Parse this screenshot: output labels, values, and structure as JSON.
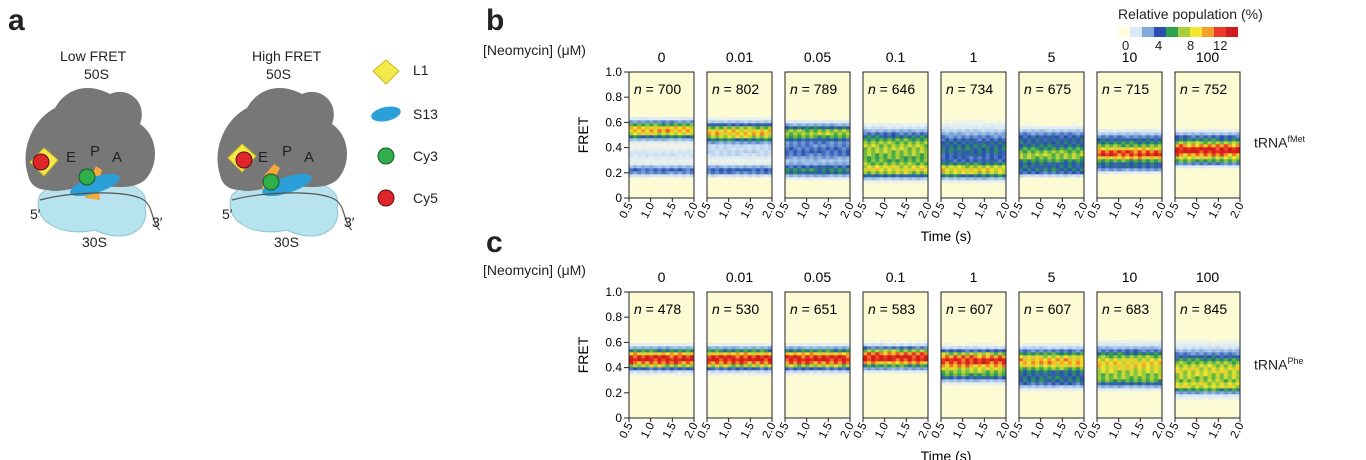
{
  "panel_a": {
    "letter": "a",
    "low_fret_title": "Low FRET",
    "high_fret_title": "High FRET",
    "subunit_large": "50S",
    "subunit_small": "30S",
    "sites": [
      "E",
      "P",
      "A"
    ],
    "five_prime": "5′",
    "three_prime": "3′",
    "legend": [
      {
        "label": "L1",
        "shape": "diamond",
        "color": "#f5e94a"
      },
      {
        "label": "S13",
        "shape": "ellipse",
        "color": "#2a9fd8"
      },
      {
        "label": "Cy3",
        "shape": "circle",
        "color": "#2fae49"
      },
      {
        "label": "Cy5",
        "shape": "circle",
        "color": "#e0262b"
      }
    ],
    "colors": {
      "ribosome_50s": "#777777",
      "ribosome_30s": "#b7e3ee",
      "trna": "#f6a83b"
    }
  },
  "panel_b": {
    "letter": "b",
    "trna_base": "tRNA",
    "trna_sup": "fMet"
  },
  "panel_c": {
    "letter": "c",
    "trna_base": "tRNA",
    "trna_sup": "Phe"
  },
  "shared": {
    "conc_label": "[Neomycin] (μM)",
    "xlabel": "Time (s)",
    "ylabel": "FRET",
    "xticks": [
      "0.5",
      "1.0",
      "1.5",
      "2.0"
    ],
    "yticks": [
      "1.0",
      "0.8",
      "0.6",
      "0.4",
      "0.2",
      "0"
    ]
  },
  "colorbar": {
    "title": "Relative population (%)",
    "ticks": [
      "0",
      "4",
      "8",
      "12"
    ],
    "colors": [
      "#fffce0",
      "#d8e8f5",
      "#7fa8dc",
      "#2a4fb0",
      "#2fa14f",
      "#a6cf3a",
      "#f4e42c",
      "#f4a12a",
      "#ec3a24",
      "#d01c1c"
    ]
  },
  "chart_data": [
    {
      "type": "heatmap",
      "panel": "b",
      "trna": "tRNA fMet",
      "ylabel": "FRET",
      "xlabel": "Time (s)",
      "xlim": [
        0.5,
        2.0
      ],
      "ylim": [
        0,
        1.0
      ],
      "concentrations_uM": [
        "0",
        "0.01",
        "0.05",
        "0.1",
        "1",
        "5",
        "10",
        "100"
      ],
      "n": [
        "700",
        "802",
        "789",
        "646",
        "734",
        "675",
        "715",
        "752"
      ],
      "bands": [
        [
          {
            "fret": 0.54,
            "width": 0.045,
            "intensity": 0.75
          },
          {
            "fret": 0.22,
            "width": 0.03,
            "intensity": 0.3
          },
          {
            "fret": 0.35,
            "width": 0.04,
            "intensity": 0.12
          }
        ],
        [
          {
            "fret": 0.52,
            "width": 0.05,
            "intensity": 0.72
          },
          {
            "fret": 0.22,
            "width": 0.03,
            "intensity": 0.32
          },
          {
            "fret": 0.36,
            "width": 0.04,
            "intensity": 0.14
          }
        ],
        [
          {
            "fret": 0.52,
            "width": 0.045,
            "intensity": 0.55
          },
          {
            "fret": 0.22,
            "width": 0.035,
            "intensity": 0.4
          },
          {
            "fret": 0.37,
            "width": 0.06,
            "intensity": 0.3
          }
        ],
        [
          {
            "fret": 0.45,
            "width": 0.07,
            "intensity": 0.38
          },
          {
            "fret": 0.22,
            "width": 0.04,
            "intensity": 0.48
          },
          {
            "fret": 0.33,
            "width": 0.08,
            "intensity": 0.4
          }
        ],
        [
          {
            "fret": 0.4,
            "width": 0.1,
            "intensity": 0.38
          },
          {
            "fret": 0.22,
            "width": 0.04,
            "intensity": 0.6
          }
        ],
        [
          {
            "fret": 0.34,
            "width": 0.06,
            "intensity": 0.55
          },
          {
            "fret": 0.48,
            "width": 0.05,
            "intensity": 0.3
          },
          {
            "fret": 0.22,
            "width": 0.03,
            "intensity": 0.3
          }
        ],
        [
          {
            "fret": 0.35,
            "width": 0.04,
            "intensity": 0.88
          },
          {
            "fret": 0.45,
            "width": 0.05,
            "intensity": 0.35
          },
          {
            "fret": 0.25,
            "width": 0.03,
            "intensity": 0.3
          }
        ],
        [
          {
            "fret": 0.38,
            "width": 0.04,
            "intensity": 1.0
          },
          {
            "fret": 0.47,
            "width": 0.04,
            "intensity": 0.3
          },
          {
            "fret": 0.3,
            "width": 0.03,
            "intensity": 0.35
          }
        ]
      ]
    },
    {
      "type": "heatmap",
      "panel": "c",
      "trna": "tRNA Phe",
      "ylabel": "FRET",
      "xlabel": "Time (s)",
      "xlim": [
        0.5,
        2.0
      ],
      "ylim": [
        0,
        1.0
      ],
      "concentrations_uM": [
        "0",
        "0.01",
        "0.05",
        "0.1",
        "1",
        "5",
        "10",
        "100"
      ],
      "n": [
        "478",
        "530",
        "651",
        "583",
        "607",
        "607",
        "683",
        "845"
      ],
      "bands": [
        [
          {
            "fret": 0.47,
            "width": 0.05,
            "intensity": 1.0
          }
        ],
        [
          {
            "fret": 0.47,
            "width": 0.05,
            "intensity": 1.0
          }
        ],
        [
          {
            "fret": 0.47,
            "width": 0.05,
            "intensity": 1.0
          }
        ],
        [
          {
            "fret": 0.48,
            "width": 0.05,
            "intensity": 1.0
          }
        ],
        [
          {
            "fret": 0.46,
            "width": 0.05,
            "intensity": 0.95
          },
          {
            "fret": 0.35,
            "width": 0.04,
            "intensity": 0.4
          }
        ],
        [
          {
            "fret": 0.45,
            "width": 0.06,
            "intensity": 0.75
          },
          {
            "fret": 0.3,
            "width": 0.04,
            "intensity": 0.35
          }
        ],
        [
          {
            "fret": 0.43,
            "width": 0.08,
            "intensity": 0.68
          },
          {
            "fret": 0.3,
            "width": 0.04,
            "intensity": 0.3
          }
        ],
        [
          {
            "fret": 0.38,
            "width": 0.1,
            "intensity": 0.62
          },
          {
            "fret": 0.25,
            "width": 0.03,
            "intensity": 0.35
          }
        ]
      ]
    }
  ]
}
